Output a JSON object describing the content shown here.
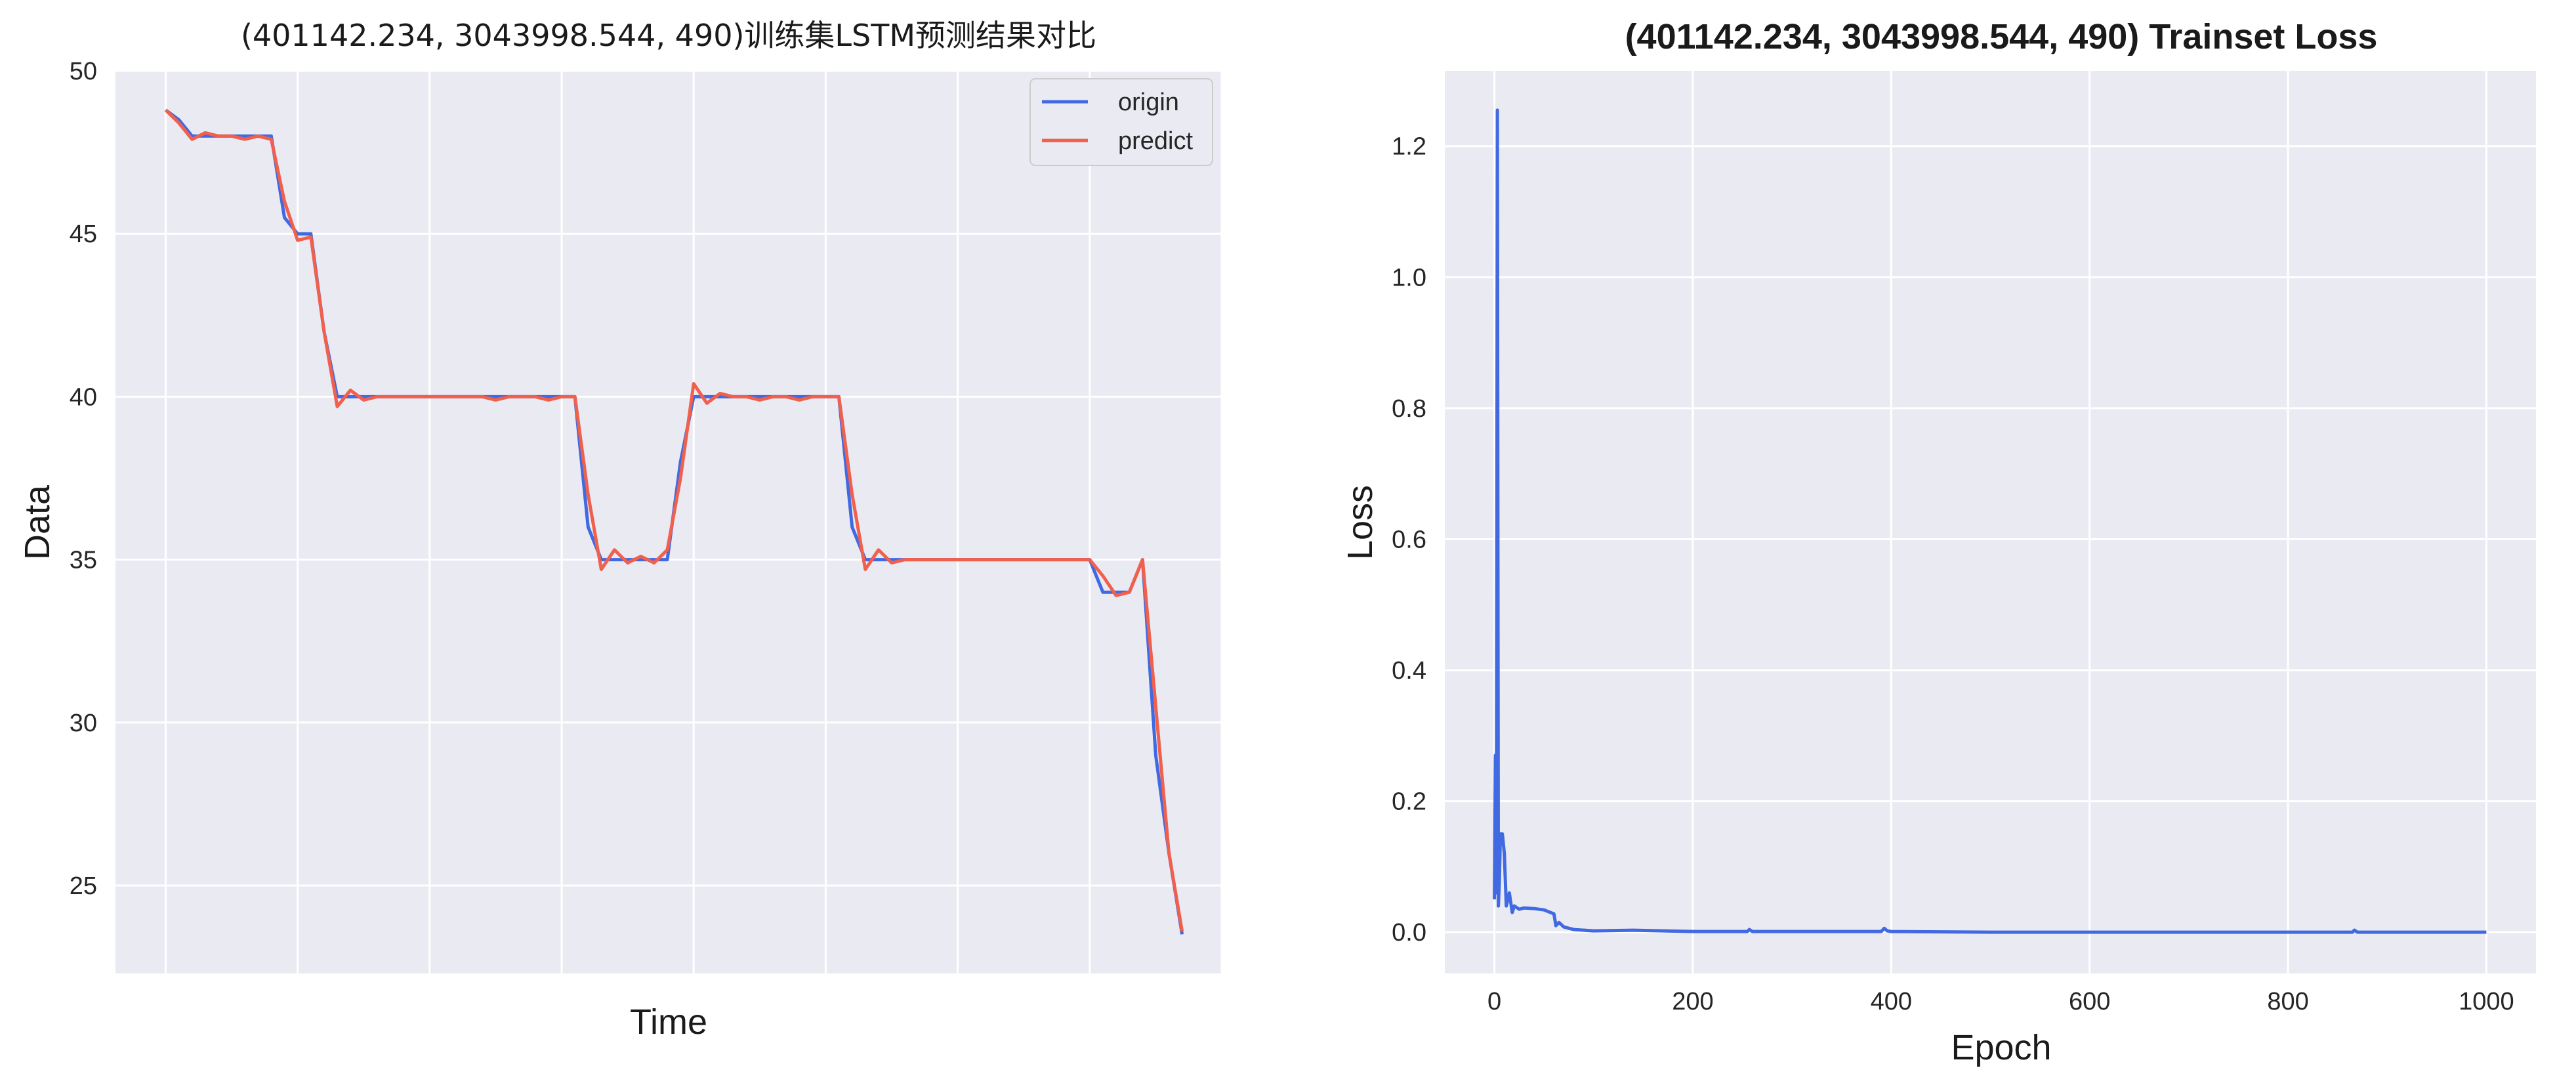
{
  "colors": {
    "origin": "#4169E1",
    "predict": "#F0604D",
    "plot_bg": "#EAEAF2",
    "grid": "#FFFFFF"
  },
  "chart_data": [
    {
      "type": "line",
      "title": "(401142.234, 3043998.544, 490)训练集LSTM预测结果对比",
      "xlabel": "Time",
      "ylabel": "Data",
      "x_tick_labels_visible": false,
      "xlim": [
        -3.8,
        80
      ],
      "ylim": [
        22.3,
        50
      ],
      "yticks": [
        25,
        30,
        35,
        40,
        45,
        50
      ],
      "grid": true,
      "legend": {
        "position": "upper right",
        "entries": [
          "origin",
          "predict"
        ]
      },
      "series": [
        {
          "name": "origin",
          "x": [
            0,
            1,
            2,
            3,
            4,
            5,
            6,
            7,
            8,
            9,
            10,
            11,
            12,
            13,
            14,
            15,
            16,
            17,
            18,
            19,
            20,
            21,
            22,
            23,
            24,
            25,
            26,
            27,
            28,
            29,
            30,
            31,
            32,
            33,
            34,
            35,
            36,
            37,
            38,
            39,
            40,
            41,
            42,
            43,
            44,
            45,
            46,
            47,
            48,
            49,
            50,
            51,
            52,
            53,
            54,
            55,
            56,
            57,
            58,
            59,
            60,
            61,
            62,
            63,
            64,
            65,
            66,
            67,
            68,
            69,
            70,
            71,
            72,
            73,
            74,
            75,
            76,
            77
          ],
          "y": [
            48.8,
            48.5,
            48.0,
            48.0,
            48.0,
            48.0,
            48.0,
            48.0,
            48.0,
            45.5,
            45.0,
            45.0,
            42.0,
            40.0,
            40.0,
            40.0,
            40.0,
            40.0,
            40.0,
            40.0,
            40.0,
            40.0,
            40.0,
            40.0,
            40.0,
            40.0,
            40.0,
            40.0,
            40.0,
            40.0,
            40.0,
            40.0,
            36.0,
            35.0,
            35.0,
            35.0,
            35.0,
            35.0,
            35.0,
            38.0,
            40.0,
            40.0,
            40.0,
            40.0,
            40.0,
            40.0,
            40.0,
            40.0,
            40.0,
            40.0,
            40.0,
            40.0,
            36.0,
            35.0,
            35.0,
            35.0,
            35.0,
            35.0,
            35.0,
            35.0,
            35.0,
            35.0,
            35.0,
            35.0,
            35.0,
            35.0,
            35.0,
            35.0,
            35.0,
            35.0,
            35.0,
            34.0,
            34.0,
            34.0,
            35.0,
            29.0,
            26.0,
            23.5
          ]
        },
        {
          "name": "predict",
          "x": [
            0,
            1,
            2,
            3,
            4,
            5,
            6,
            7,
            8,
            9,
            10,
            11,
            12,
            13,
            14,
            15,
            16,
            17,
            18,
            19,
            20,
            21,
            22,
            23,
            24,
            25,
            26,
            27,
            28,
            29,
            30,
            31,
            32,
            33,
            34,
            35,
            36,
            37,
            38,
            39,
            40,
            41,
            42,
            43,
            44,
            45,
            46,
            47,
            48,
            49,
            50,
            51,
            52,
            53,
            54,
            55,
            56,
            57,
            58,
            59,
            60,
            61,
            62,
            63,
            64,
            65,
            66,
            67,
            68,
            69,
            70,
            71,
            72,
            73,
            74,
            75,
            76,
            77
          ],
          "y": [
            48.8,
            48.4,
            47.9,
            48.1,
            48.0,
            48.0,
            47.9,
            48.0,
            47.9,
            46.0,
            44.8,
            44.9,
            42.0,
            39.7,
            40.2,
            39.9,
            40.0,
            40.0,
            40.0,
            40.0,
            40.0,
            40.0,
            40.0,
            40.0,
            40.0,
            39.9,
            40.0,
            40.0,
            40.0,
            39.9,
            40.0,
            40.0,
            37.0,
            34.7,
            35.3,
            34.9,
            35.1,
            34.9,
            35.3,
            37.5,
            40.4,
            39.8,
            40.1,
            40.0,
            40.0,
            39.9,
            40.0,
            40.0,
            39.9,
            40.0,
            40.0,
            40.0,
            37.0,
            34.7,
            35.3,
            34.9,
            35.0,
            35.0,
            35.0,
            35.0,
            35.0,
            35.0,
            35.0,
            35.0,
            35.0,
            35.0,
            35.0,
            35.0,
            35.0,
            35.0,
            35.0,
            34.5,
            33.9,
            34.0,
            35.0,
            30.5,
            26.0,
            23.6
          ]
        }
      ]
    },
    {
      "type": "line",
      "title": "(401142.234, 3043998.544, 490) Trainset Loss",
      "xlabel": "Epoch",
      "ylabel": "Loss",
      "xlim": [
        -50,
        1050
      ],
      "ylim": [
        -0.063,
        1.315
      ],
      "xticks": [
        0,
        200,
        400,
        600,
        800,
        1000
      ],
      "yticks": [
        0.0,
        0.2,
        0.4,
        0.6,
        0.8,
        1.0,
        1.2
      ],
      "ytick_labels": [
        "0.0",
        "0.2",
        "0.4",
        "0.6",
        "0.8",
        "1.0",
        "1.2"
      ],
      "grid": true,
      "series": [
        {
          "x": [
            0,
            1,
            2,
            3,
            4,
            5,
            6,
            8,
            10,
            12,
            15,
            18,
            20,
            25,
            30,
            40,
            50,
            60,
            62,
            65,
            70,
            80,
            100,
            140,
            200,
            255,
            257,
            260,
            300,
            390,
            393,
            396,
            400,
            500,
            700,
            865,
            867,
            870,
            1000
          ],
          "y": [
            0.05,
            0.27,
            0.06,
            1.255,
            0.04,
            0.08,
            0.15,
            0.15,
            0.12,
            0.04,
            0.06,
            0.03,
            0.04,
            0.035,
            0.037,
            0.036,
            0.034,
            0.028,
            0.01,
            0.015,
            0.008,
            0.004,
            0.002,
            0.003,
            0.001,
            0.001,
            0.004,
            0.001,
            0.001,
            0.001,
            0.006,
            0.002,
            0.001,
            0.0,
            0.0,
            0.0,
            0.003,
            0.0,
            0.0
          ]
        }
      ]
    }
  ]
}
